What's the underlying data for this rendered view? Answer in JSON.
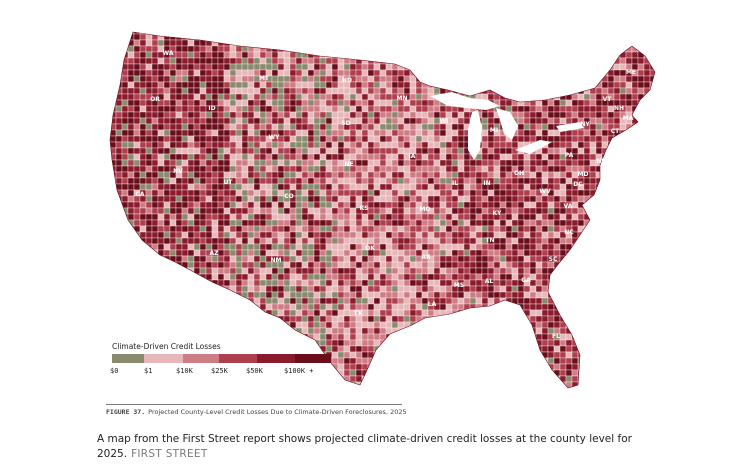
{
  "map": {
    "colors": {
      "lake": "#ffffff",
      "border": "#ffffff",
      "bins": [
        "#8a8a6e",
        "#e7b7ba",
        "#cf7d85",
        "#ad3f4e",
        "#8a1b2c",
        "#6a0e1c"
      ]
    },
    "state_labels": [
      "WA",
      "OR",
      "CA",
      "NV",
      "ID",
      "MT",
      "WY",
      "UT",
      "AZ",
      "CO",
      "NM",
      "ND",
      "SD",
      "NE",
      "KS",
      "OK",
      "TX",
      "MN",
      "IA",
      "MO",
      "AR",
      "LA",
      "WI",
      "IL",
      "MI",
      "IN",
      "OH",
      "KY",
      "TN",
      "MS",
      "AL",
      "GA",
      "FL",
      "SC",
      "NC",
      "VA",
      "WV",
      "PA",
      "NY",
      "VT",
      "NH",
      "ME",
      "MA",
      "CT",
      "NJ",
      "MD",
      "DC"
    ]
  },
  "legend": {
    "title": "Climate-Driven Credit Losses",
    "labels": [
      "$0",
      "$1",
      "$10K",
      "$25K",
      "$50K",
      "$100K +"
    ]
  },
  "figure_caption": {
    "number": "FIGURE 37.",
    "text": "Projected County-Level Credit Losses Due to Climate-Driven Foreclosures, 2025"
  },
  "caption": {
    "text": "A map from the First Street report shows projected climate-driven credit losses at the county level for 2025.",
    "credit": "FIRST STREET"
  }
}
